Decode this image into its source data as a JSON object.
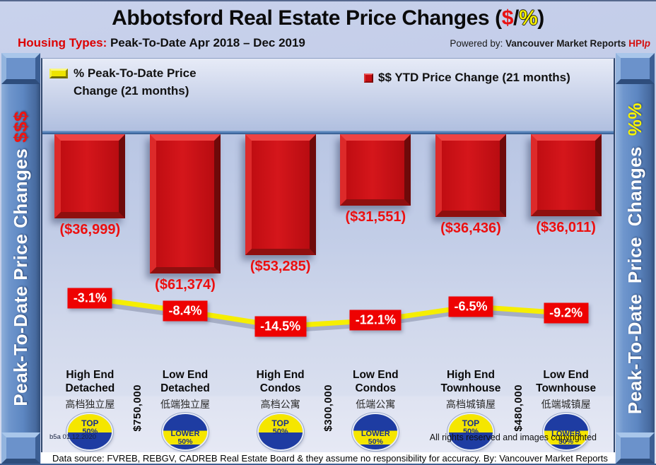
{
  "page": {
    "title": {
      "prefix": "Abbotsford Real Estate Price Changes (",
      "dollar": "$",
      "slash": "/",
      "percent": "%",
      "suffix": ")"
    },
    "subtitle": {
      "label": "Housing Types:",
      "text": " Peak-To-Date Apr 2018 – Dec 2019"
    },
    "powered_by": {
      "label": "Powered by: ",
      "name": "Vancouver Market Reports ",
      "brand": "HPI",
      "brand_suffix": "p"
    }
  },
  "sidebar_left": {
    "text": "Peak-To-Date Price Changes ",
    "suffix": "$$$"
  },
  "sidebar_right": {
    "text": "Peak-To-Date Price Changes ",
    "suffix": "%%"
  },
  "legend": {
    "pct_line1": "% Peak-To-Date Price",
    "pct_line2": "Change (21 months)",
    "usd": "$$ YTD Price Change (21 months)"
  },
  "chart_data": {
    "type": "bar",
    "title": "Abbotsford Real Estate Price Changes ($/%)",
    "subtitle": "Housing Types: Peak-To-Date Apr 2018 – Dec 2019",
    "categories": [
      "High End Detached",
      "Low End Detached",
      "High End Condos",
      "Low End Condos",
      "High End Townhouse",
      "Low End Townhouse"
    ],
    "series": [
      {
        "name": "$$ YTD Price Change (21 months)",
        "type": "bar",
        "color": "#cc1016",
        "values": [
          -36999,
          -61374,
          -53285,
          -31551,
          -36436,
          -36011
        ],
        "labels": [
          "($36,999)",
          "($61,374)",
          "($53,285)",
          "($31,551)",
          "($36,436)",
          "($36,011)"
        ]
      },
      {
        "name": "% Peak-To-Date Price Change (21 months)",
        "type": "line",
        "color": "#f6ee00",
        "values": [
          -3.1,
          -8.4,
          -14.5,
          -12.1,
          -6.5,
          -9.2
        ],
        "labels": [
          "-3.1%",
          "-8.4%",
          "-14.5%",
          "-12.1%",
          "-6.5%",
          "-9.2%"
        ]
      }
    ],
    "separators": [
      {
        "after_index": 0,
        "label": "$750,000"
      },
      {
        "after_index": 2,
        "label": "$300,000"
      },
      {
        "after_index": 4,
        "label": "$480,000"
      }
    ],
    "legend_position": "top",
    "grid": false
  },
  "category_details": [
    {
      "name_lines": [
        "High End",
        "Detached"
      ],
      "chinese": "高档独立屋",
      "badge": {
        "type": "top",
        "line1": "TOP",
        "line2": "50%"
      }
    },
    {
      "name_lines": [
        "Low End",
        "Detached"
      ],
      "chinese": "低端独立屋",
      "badge": {
        "type": "lower",
        "line1": "LOWER",
        "line2": "50%"
      }
    },
    {
      "name_lines": [
        "High End",
        "Condos"
      ],
      "chinese": "高档公寓",
      "badge": {
        "type": "top",
        "line1": "TOP",
        "line2": "50%"
      }
    },
    {
      "name_lines": [
        "Low End",
        "Condos"
      ],
      "chinese": "低端公寓",
      "badge": {
        "type": "lower",
        "line1": "LOWER",
        "line2": "50%"
      }
    },
    {
      "name_lines": [
        "High End",
        "Townhouse"
      ],
      "chinese": "高档城镇屋",
      "badge": {
        "type": "top",
        "line1": "TOP",
        "line2": "50%"
      }
    },
    {
      "name_lines": [
        "Low End",
        "Townhouse"
      ],
      "chinese": "低端城镇屋",
      "badge": {
        "type": "lower",
        "line1": "LOWER",
        "line2": "50%"
      }
    }
  ],
  "footer": {
    "version": "b5a 01.12.2020",
    "rights": "All rights reserved and  images copyrighted",
    "datasource": "Data source: FVREB, REBGV, CADREB Real Estate Board & they assume no responsibility for accuracy. By: Vancouver Market Reports"
  },
  "colors": {
    "bar_red": "#cc1016",
    "value_label_red": "#ec0f0f",
    "line_yellow": "#f6ee00",
    "pct_box_red": "#ee0202",
    "badge_navy": "#1e3ca2",
    "badge_yellow": "#f5e600",
    "sidebar_blue": "#5d87c2",
    "axis_blue": "#4d79b3"
  }
}
